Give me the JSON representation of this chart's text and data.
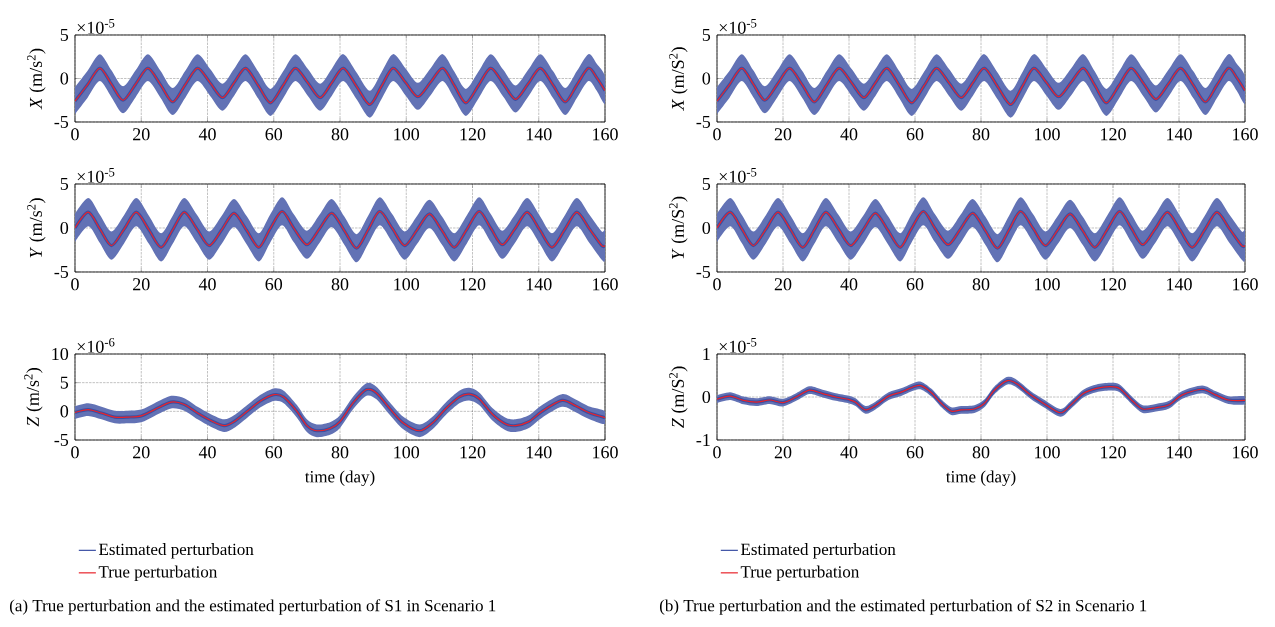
{
  "chart_data": [
    {
      "type": "line",
      "ylabel": "*X* (m/s$^{2}$)",
      "annotations": [
        "×10$^{-5}$"
      ],
      "xlim": [
        0,
        160
      ],
      "xticks": [
        0,
        20,
        40,
        60,
        80,
        100,
        120,
        140,
        160
      ],
      "ylim": [
        -5,
        5
      ],
      "yticks": [
        -5,
        0,
        5
      ],
      "grid": true,
      "x": [
        0,
        3.8,
        7.5,
        11,
        14.5,
        18.3,
        22,
        25.8,
        29.5,
        33.3,
        37,
        40.8,
        44.5,
        48,
        51.5,
        55.3,
        59,
        62.8,
        66.5,
        70.3,
        74,
        77.5,
        81,
        85,
        89,
        92.5,
        96,
        99.8,
        103.5,
        107.3,
        111,
        114.5,
        118,
        121.8,
        125.5,
        129.3,
        133,
        136.8,
        140.5,
        144.3,
        148,
        151.5,
        155,
        157.5,
        160
      ],
      "series": [
        {
          "color": "#3b4fa3",
          "values": [
            -2.6,
            -0.7,
            1.2,
            -0.65,
            -2.5,
            -0.65,
            1.2,
            -0.7,
            -2.7,
            -0.7,
            1.2,
            -0.5,
            -2.2,
            -0.5,
            1.2,
            -0.8,
            -2.8,
            -0.8,
            1.2,
            -0.5,
            -2.2,
            -0.5,
            1.2,
            -0.9,
            -3.0,
            -0.9,
            1.2,
            -0.45,
            -2.1,
            -0.45,
            1.2,
            -0.8,
            -2.8,
            -0.8,
            1.2,
            -0.6,
            -2.4,
            -0.6,
            1.2,
            -0.75,
            -2.7,
            -0.75,
            1.2,
            0.1,
            -1.4
          ],
          "upper": [
            -1.0,
            0.9,
            2.8,
            0.95,
            -0.9,
            0.95,
            2.8,
            0.9,
            -1.1,
            0.9,
            2.8,
            1.1,
            -0.6,
            1.1,
            2.8,
            0.8,
            -1.2,
            0.8,
            2.8,
            1.1,
            -0.6,
            1.1,
            2.8,
            0.7,
            -1.4,
            0.7,
            2.8,
            1.15,
            -0.5,
            1.15,
            2.8,
            0.8,
            -1.2,
            0.8,
            2.8,
            1.0,
            -0.8,
            1.0,
            2.8,
            0.85,
            -1.1,
            0.85,
            2.8,
            1.7,
            0.2
          ],
          "lower": [
            -4.1,
            -2.2,
            -0.3,
            -2.15,
            -4.0,
            -2.15,
            -0.3,
            -2.2,
            -4.2,
            -2.2,
            -0.3,
            -2.0,
            -3.7,
            -2.0,
            -0.3,
            -2.3,
            -4.3,
            -2.3,
            -0.3,
            -2.0,
            -3.7,
            -2.0,
            -0.3,
            -2.4,
            -4.5,
            -2.4,
            -0.3,
            -1.95,
            -3.6,
            -1.95,
            -0.3,
            -2.3,
            -4.3,
            -2.3,
            -0.3,
            -2.1,
            -3.9,
            -2.1,
            -0.3,
            -2.25,
            -4.2,
            -2.25,
            -0.3,
            -1.4,
            -2.9
          ]
        },
        {
          "color": "#e8232b",
          "values": [
            -2.6,
            -0.7,
            1.2,
            -0.65,
            -2.5,
            -0.65,
            1.2,
            -0.7,
            -2.7,
            -0.7,
            1.2,
            -0.5,
            -2.2,
            -0.5,
            1.2,
            -0.8,
            -2.8,
            -0.8,
            1.2,
            -0.5,
            -2.2,
            -0.5,
            1.2,
            -0.9,
            -3.0,
            -0.9,
            1.2,
            -0.45,
            -2.1,
            -0.45,
            1.2,
            -0.8,
            -2.8,
            -0.8,
            1.2,
            -0.6,
            -2.4,
            -0.6,
            1.2,
            -0.75,
            -2.7,
            -0.75,
            1.2,
            0.1,
            -1.4
          ]
        }
      ]
    },
    {
      "type": "line",
      "ylabel": "*X* (m/S$^{2}$)",
      "annotations": [
        "×10$^{-5}$"
      ],
      "xlim": [
        0,
        160
      ],
      "xticks": [
        0,
        20,
        40,
        60,
        80,
        100,
        120,
        140,
        160
      ],
      "ylim": [
        -5,
        5
      ],
      "yticks": [
        -5,
        0,
        5
      ],
      "grid": true,
      "x": [
        0,
        3.8,
        7.5,
        11,
        14.5,
        18.3,
        22,
        25.8,
        29.5,
        33.3,
        37,
        40.8,
        44.5,
        48,
        51.5,
        55.3,
        59,
        62.8,
        66.5,
        70.3,
        74,
        77.5,
        81,
        85,
        89,
        92.5,
        96,
        99.8,
        103.5,
        107.3,
        111,
        114.5,
        118,
        121.8,
        125.5,
        129.3,
        133,
        136.8,
        140.5,
        144.3,
        148,
        151.5,
        155,
        157.5,
        160
      ],
      "series": [
        {
          "color": "#3b4fa3",
          "values": [
            -2.6,
            -0.7,
            1.2,
            -0.65,
            -2.5,
            -0.65,
            1.2,
            -0.7,
            -2.7,
            -0.7,
            1.2,
            -0.5,
            -2.2,
            -0.5,
            1.2,
            -0.8,
            -2.8,
            -0.8,
            1.2,
            -0.5,
            -2.2,
            -0.5,
            1.2,
            -0.9,
            -3.0,
            -0.9,
            1.2,
            -0.45,
            -2.1,
            -0.45,
            1.2,
            -0.8,
            -2.8,
            -0.8,
            1.2,
            -0.6,
            -2.4,
            -0.6,
            1.2,
            -0.75,
            -2.7,
            -0.75,
            1.2,
            0.1,
            -1.4
          ],
          "upper": [
            -1.0,
            0.9,
            2.8,
            0.95,
            -0.9,
            0.95,
            2.8,
            0.9,
            -1.1,
            0.9,
            2.8,
            1.1,
            -0.6,
            1.1,
            2.8,
            0.8,
            -1.2,
            0.8,
            2.8,
            1.1,
            -0.6,
            1.1,
            2.8,
            0.7,
            -1.4,
            0.7,
            2.8,
            1.15,
            -0.5,
            1.15,
            2.8,
            0.8,
            -1.2,
            0.8,
            2.8,
            1.0,
            -0.8,
            1.0,
            2.8,
            0.85,
            -1.1,
            0.85,
            2.8,
            1.7,
            0.2
          ],
          "lower": [
            -4.1,
            -2.2,
            -0.3,
            -2.15,
            -4.0,
            -2.15,
            -0.3,
            -2.2,
            -4.2,
            -2.2,
            -0.3,
            -2.0,
            -3.7,
            -2.0,
            -0.3,
            -2.3,
            -4.3,
            -2.3,
            -0.3,
            -2.0,
            -3.7,
            -2.0,
            -0.3,
            -2.4,
            -4.5,
            -2.4,
            -0.3,
            -1.95,
            -3.6,
            -1.95,
            -0.3,
            -2.3,
            -4.3,
            -2.3,
            -0.3,
            -2.1,
            -3.9,
            -2.1,
            -0.3,
            -2.25,
            -4.2,
            -2.25,
            -0.3,
            -1.4,
            -2.9
          ]
        },
        {
          "color": "#e8232b",
          "values": [
            -2.6,
            -0.7,
            1.2,
            -0.65,
            -2.5,
            -0.65,
            1.2,
            -0.7,
            -2.7,
            -0.7,
            1.2,
            -0.5,
            -2.2,
            -0.5,
            1.2,
            -0.8,
            -2.8,
            -0.8,
            1.2,
            -0.5,
            -2.2,
            -0.5,
            1.2,
            -0.9,
            -3.0,
            -0.9,
            1.2,
            -0.45,
            -2.1,
            -0.45,
            1.2,
            -0.8,
            -2.8,
            -0.8,
            1.2,
            -0.6,
            -2.4,
            -0.6,
            1.2,
            -0.75,
            -2.7,
            -0.75,
            1.2,
            0.1,
            -1.4
          ]
        }
      ]
    },
    {
      "type": "line",
      "ylabel": "*Y* (m/s$^{2}$)",
      "annotations": [
        "×10$^{-5}$"
      ],
      "xlim": [
        0,
        160
      ],
      "xticks": [
        0,
        20,
        40,
        60,
        80,
        100,
        120,
        140,
        160
      ],
      "ylim": [
        -5,
        5
      ],
      "yticks": [
        -5,
        0,
        5
      ],
      "grid": true,
      "x": [
        0,
        4,
        7.5,
        11,
        14.8,
        18.5,
        22.3,
        26,
        29.5,
        33,
        36.8,
        40.5,
        44.3,
        48,
        51.8,
        55.5,
        58.8,
        62.5,
        66,
        70,
        73.8,
        77.5,
        81.3,
        85,
        88.5,
        92,
        95.8,
        99.5,
        103.3,
        107,
        110.8,
        114.5,
        118.3,
        122,
        125.5,
        129,
        132.8,
        136.5,
        140.3,
        144,
        147.8,
        151.5,
        155.3,
        159,
        160
      ],
      "series": [
        {
          "color": "#3b4fa3",
          "values": [
            0,
            1.8,
            -0.1,
            -2.0,
            -0.15,
            1.8,
            -0.2,
            -2.2,
            -0.2,
            1.8,
            -0.1,
            -2.0,
            -0.2,
            1.7,
            -0.25,
            -2.2,
            -0.15,
            1.9,
            0,
            -1.9,
            -0.1,
            1.7,
            -0.3,
            -2.3,
            -0.2,
            1.9,
            -0.05,
            -2.0,
            -0.2,
            1.6,
            -0.3,
            -2.2,
            -0.15,
            1.9,
            0,
            -1.9,
            -0.1,
            1.8,
            -0.2,
            -2.2,
            -0.2,
            1.8,
            -0.1,
            -2.0,
            -1.95
          ],
          "upper": [
            1.6,
            3.4,
            1.5,
            -0.4,
            1.45,
            3.4,
            1.4,
            -0.6,
            1.4,
            3.4,
            1.5,
            -0.4,
            1.4,
            3.3,
            1.35,
            -0.6,
            1.45,
            3.5,
            1.6,
            -0.3,
            1.5,
            3.3,
            1.3,
            -0.7,
            1.4,
            3.5,
            1.55,
            -0.4,
            1.4,
            3.2,
            1.3,
            -0.6,
            1.45,
            3.5,
            1.6,
            -0.3,
            1.5,
            3.4,
            1.4,
            -0.6,
            1.4,
            3.4,
            1.5,
            -0.4,
            -0.35
          ],
          "lower": [
            -1.6,
            0.2,
            -1.7,
            -3.6,
            -1.75,
            0.2,
            -1.8,
            -3.8,
            -1.8,
            0.2,
            -1.7,
            -3.6,
            -1.8,
            0.1,
            -1.85,
            -3.8,
            -1.75,
            0.3,
            -1.6,
            -3.5,
            -1.7,
            0.1,
            -1.9,
            -3.9,
            -1.8,
            0.3,
            -1.65,
            -3.6,
            -1.8,
            0.0,
            -1.9,
            -3.8,
            -1.75,
            0.3,
            -1.6,
            -3.5,
            -1.7,
            0.2,
            -1.8,
            -3.8,
            -1.8,
            0.2,
            -1.7,
            -3.6,
            -3.55
          ]
        },
        {
          "color": "#e8232b",
          "values": [
            0,
            1.8,
            -0.1,
            -2.0,
            -0.15,
            1.8,
            -0.2,
            -2.2,
            -0.2,
            1.8,
            -0.1,
            -2.0,
            -0.2,
            1.7,
            -0.25,
            -2.2,
            -0.15,
            1.9,
            0,
            -1.9,
            -0.1,
            1.7,
            -0.3,
            -2.3,
            -0.2,
            1.9,
            -0.05,
            -2.0,
            -0.2,
            1.6,
            -0.3,
            -2.2,
            -0.15,
            1.9,
            0,
            -1.9,
            -0.1,
            1.8,
            -0.2,
            -2.2,
            -0.2,
            1.8,
            -0.1,
            -2.0,
            -1.95
          ]
        }
      ]
    },
    {
      "type": "line",
      "ylabel": "*Y* (m/S$^{2}$)",
      "annotations": [
        "×10$^{-5}$"
      ],
      "xlim": [
        0,
        160
      ],
      "xticks": [
        0,
        20,
        40,
        60,
        80,
        100,
        120,
        140,
        160
      ],
      "ylim": [
        -5,
        5
      ],
      "yticks": [
        -5,
        0,
        5
      ],
      "grid": true,
      "x": [
        0,
        4,
        7.5,
        11,
        14.8,
        18.5,
        22.3,
        26,
        29.5,
        33,
        36.8,
        40.5,
        44.3,
        48,
        51.8,
        55.5,
        58.8,
        62.5,
        66,
        70,
        73.8,
        77.5,
        81.3,
        85,
        88.5,
        92,
        95.8,
        99.5,
        103.3,
        107,
        110.8,
        114.5,
        118.3,
        122,
        125.5,
        129,
        132.8,
        136.5,
        140.3,
        144,
        147.8,
        151.5,
        155.3,
        159,
        160
      ],
      "series": [
        {
          "color": "#3b4fa3",
          "values": [
            0,
            1.8,
            -0.1,
            -2.0,
            -0.15,
            1.8,
            -0.2,
            -2.2,
            -0.2,
            1.8,
            -0.1,
            -2.0,
            -0.2,
            1.7,
            -0.25,
            -2.2,
            -0.15,
            1.9,
            0,
            -1.9,
            -0.1,
            1.7,
            -0.3,
            -2.3,
            -0.2,
            1.9,
            -0.05,
            -2.0,
            -0.2,
            1.6,
            -0.3,
            -2.2,
            -0.15,
            1.9,
            0,
            -1.9,
            -0.1,
            1.8,
            -0.2,
            -2.2,
            -0.2,
            1.8,
            -0.1,
            -2.0,
            -1.95
          ],
          "upper": [
            1.6,
            3.4,
            1.5,
            -0.4,
            1.45,
            3.4,
            1.4,
            -0.6,
            1.4,
            3.4,
            1.5,
            -0.4,
            1.4,
            3.3,
            1.35,
            -0.6,
            1.45,
            3.5,
            1.6,
            -0.3,
            1.5,
            3.3,
            1.3,
            -0.7,
            1.4,
            3.5,
            1.55,
            -0.4,
            1.4,
            3.2,
            1.3,
            -0.6,
            1.45,
            3.5,
            1.6,
            -0.3,
            1.5,
            3.4,
            1.4,
            -0.6,
            1.4,
            3.4,
            1.5,
            -0.4,
            -0.35
          ],
          "lower": [
            -1.6,
            0.2,
            -1.7,
            -3.6,
            -1.75,
            0.2,
            -1.8,
            -3.8,
            -1.8,
            0.2,
            -1.7,
            -3.6,
            -1.8,
            0.1,
            -1.85,
            -3.8,
            -1.75,
            0.3,
            -1.6,
            -3.5,
            -1.7,
            0.1,
            -1.9,
            -3.9,
            -1.8,
            0.3,
            -1.65,
            -3.6,
            -1.8,
            0.0,
            -1.9,
            -3.8,
            -1.75,
            0.3,
            -1.6,
            -3.5,
            -1.7,
            0.2,
            -1.8,
            -3.8,
            -1.8,
            0.2,
            -1.7,
            -3.6,
            -3.55
          ]
        },
        {
          "color": "#e8232b",
          "values": [
            0,
            1.8,
            -0.1,
            -2.0,
            -0.15,
            1.8,
            -0.2,
            -2.2,
            -0.2,
            1.8,
            -0.1,
            -2.0,
            -0.2,
            1.7,
            -0.25,
            -2.2,
            -0.15,
            1.9,
            0,
            -1.9,
            -0.1,
            1.7,
            -0.3,
            -2.3,
            -0.2,
            1.9,
            -0.05,
            -2.0,
            -0.2,
            1.6,
            -0.3,
            -2.2,
            -0.15,
            1.9,
            0,
            -1.9,
            -0.1,
            1.8,
            -0.2,
            -2.2,
            -0.2,
            1.8,
            -0.1,
            -2.0,
            -1.95
          ]
        }
      ]
    },
    {
      "type": "line",
      "ylabel": "*Z* (m/s$^{2}$)",
      "xlabel": "time (day)",
      "annotations": [
        "×10$^{-6}$",
        "(a)  True perturbation and the estimated perturbation of S1 in Scenario 1"
      ],
      "xlim": [
        0,
        160
      ],
      "xticks": [
        0,
        20,
        40,
        60,
        80,
        100,
        120,
        140,
        160
      ],
      "ylim": [
        -5,
        10
      ],
      "yticks": [
        -5,
        0,
        5,
        10
      ],
      "grid": true,
      "legend": "bottom",
      "x": [
        0,
        4,
        8,
        12,
        16,
        20,
        24,
        29,
        33,
        37,
        41,
        45,
        48,
        52,
        56,
        60,
        63,
        67,
        70,
        73,
        77,
        80,
        84,
        88,
        91,
        95,
        99,
        104,
        108,
        112,
        116,
        119,
        122,
        126,
        130,
        133,
        137,
        141,
        147,
        151,
        155,
        160
      ],
      "series": [
        {
          "name": "Estimated perturbation",
          "color": "#3b4fa3",
          "values": [
            -0.2,
            0.3,
            -0.3,
            -1.0,
            -1.0,
            -0.8,
            0.3,
            1.6,
            1.2,
            -0.3,
            -1.6,
            -2.5,
            -1.8,
            0,
            1.8,
            2.9,
            2.5,
            0,
            -2.5,
            -3.4,
            -3.0,
            -1.8,
            1.5,
            3.8,
            3.2,
            0.5,
            -2.0,
            -3.4,
            -2.0,
            0.5,
            2.5,
            3.0,
            2.2,
            -0.5,
            -2.2,
            -2.5,
            -1.8,
            0,
            1.9,
            1.0,
            -0.2,
            -1.1
          ],
          "upper": [
            0.9,
            1.4,
            0.8,
            0.1,
            0.1,
            0.3,
            1.4,
            2.7,
            2.3,
            0.8,
            -0.5,
            -1.4,
            -0.7,
            1.1,
            2.9,
            4.0,
            3.6,
            1.1,
            -1.4,
            -2.3,
            -1.9,
            -0.7,
            2.6,
            4.9,
            4.3,
            1.6,
            -0.9,
            -2.3,
            -0.9,
            1.6,
            3.6,
            4.1,
            3.3,
            0.6,
            -1.1,
            -1.4,
            -0.7,
            1.1,
            3.0,
            2.1,
            0.9,
            0.0
          ],
          "lower": [
            -1.3,
            -0.8,
            -1.4,
            -2.1,
            -2.1,
            -1.9,
            -0.8,
            0.5,
            0.1,
            -1.4,
            -2.7,
            -3.6,
            -2.9,
            -1.1,
            0.7,
            1.8,
            1.4,
            -1.1,
            -3.6,
            -4.5,
            -4.1,
            -2.9,
            0.4,
            2.7,
            2.1,
            -0.6,
            -3.1,
            -4.5,
            -3.1,
            -0.6,
            1.4,
            1.9,
            1.1,
            -1.6,
            -3.3,
            -3.6,
            -2.9,
            -1.1,
            0.8,
            -0.1,
            -1.3,
            -2.2
          ]
        },
        {
          "name": "True perturbation",
          "color": "#e8232b",
          "values": [
            -0.2,
            0.3,
            -0.3,
            -1.0,
            -1.0,
            -0.8,
            0.3,
            1.6,
            1.2,
            -0.3,
            -1.6,
            -2.5,
            -1.8,
            0,
            1.8,
            2.9,
            2.5,
            0,
            -2.5,
            -3.4,
            -3.0,
            -1.8,
            1.5,
            3.8,
            3.2,
            0.5,
            -2.0,
            -3.4,
            -2.0,
            0.5,
            2.5,
            3.0,
            2.2,
            -0.5,
            -2.2,
            -2.5,
            -1.8,
            0,
            1.9,
            1.0,
            -0.2,
            -1.1
          ]
        }
      ]
    },
    {
      "type": "line",
      "ylabel": "*Z* (m/S$^{2}$)",
      "xlabel": "time (day)",
      "annotations": [
        "×10$^{-5}$",
        "(b)  True perturbation and the estimated perturbation of S2 in Scenario 1"
      ],
      "xlim": [
        0,
        160
      ],
      "xticks": [
        0,
        20,
        40,
        60,
        80,
        100,
        120,
        140,
        160
      ],
      "ylim": [
        -1,
        1
      ],
      "yticks": [
        -1,
        0,
        1
      ],
      "grid": true,
      "legend": "bottom",
      "x": [
        0,
        4,
        8,
        12,
        16,
        20,
        24,
        28,
        32,
        36,
        40,
        42,
        45,
        48,
        52,
        56,
        60,
        62,
        65,
        68,
        71,
        74,
        78,
        81,
        84,
        88,
        91,
        95,
        99,
        104,
        107,
        111,
        115,
        119,
        122,
        126,
        129,
        133,
        137,
        141,
        147,
        151,
        155,
        160
      ],
      "series": [
        {
          "name": "Estimated perturbation",
          "color": "#3b4fa3",
          "values": [
            -0.05,
            0.02,
            -0.08,
            -0.12,
            -0.07,
            -0.13,
            0.0,
            0.16,
            0.08,
            0.0,
            -0.06,
            -0.12,
            -0.3,
            -0.2,
            0.02,
            0.12,
            0.25,
            0.26,
            0.1,
            -0.15,
            -0.33,
            -0.3,
            -0.28,
            -0.15,
            0.15,
            0.38,
            0.3,
            0.05,
            -0.15,
            -0.37,
            -0.2,
            0.08,
            0.2,
            0.24,
            0.2,
            -0.1,
            -0.28,
            -0.25,
            -0.18,
            0.05,
            0.18,
            0.05,
            -0.07,
            -0.08
          ],
          "upper": [
            0.04,
            0.11,
            0.01,
            -0.03,
            0.02,
            -0.04,
            0.09,
            0.25,
            0.17,
            0.09,
            0.03,
            -0.03,
            -0.21,
            -0.11,
            0.11,
            0.21,
            0.34,
            0.35,
            0.19,
            -0.06,
            -0.24,
            -0.21,
            -0.19,
            -0.06,
            0.24,
            0.47,
            0.39,
            0.14,
            -0.06,
            -0.28,
            -0.11,
            0.17,
            0.29,
            0.33,
            0.29,
            -0.01,
            -0.19,
            -0.16,
            -0.09,
            0.14,
            0.27,
            0.14,
            0.02,
            0.01
          ],
          "lower": [
            -0.14,
            -0.07,
            -0.17,
            -0.21,
            -0.16,
            -0.22,
            -0.09,
            0.07,
            -0.01,
            -0.09,
            -0.15,
            -0.21,
            -0.39,
            -0.29,
            -0.07,
            0.03,
            0.16,
            0.17,
            0.01,
            -0.24,
            -0.42,
            -0.39,
            -0.37,
            -0.24,
            0.06,
            0.29,
            0.21,
            -0.04,
            -0.24,
            -0.46,
            -0.29,
            -0.01,
            0.11,
            0.15,
            0.11,
            -0.19,
            -0.37,
            -0.34,
            -0.27,
            -0.04,
            0.09,
            -0.04,
            -0.16,
            -0.17
          ]
        },
        {
          "name": "True perturbation",
          "color": "#e8232b",
          "values": [
            -0.05,
            0.02,
            -0.08,
            -0.12,
            -0.07,
            -0.13,
            0.0,
            0.16,
            0.08,
            0.0,
            -0.06,
            -0.12,
            -0.3,
            -0.2,
            0.02,
            0.12,
            0.25,
            0.26,
            0.1,
            -0.15,
            -0.33,
            -0.3,
            -0.28,
            -0.15,
            0.15,
            0.38,
            0.3,
            0.05,
            -0.15,
            -0.37,
            -0.2,
            0.08,
            0.2,
            0.24,
            0.2,
            -0.1,
            -0.28,
            -0.25,
            -0.18,
            0.05,
            0.18,
            0.05,
            -0.07,
            -0.08
          ]
        }
      ]
    }
  ]
}
